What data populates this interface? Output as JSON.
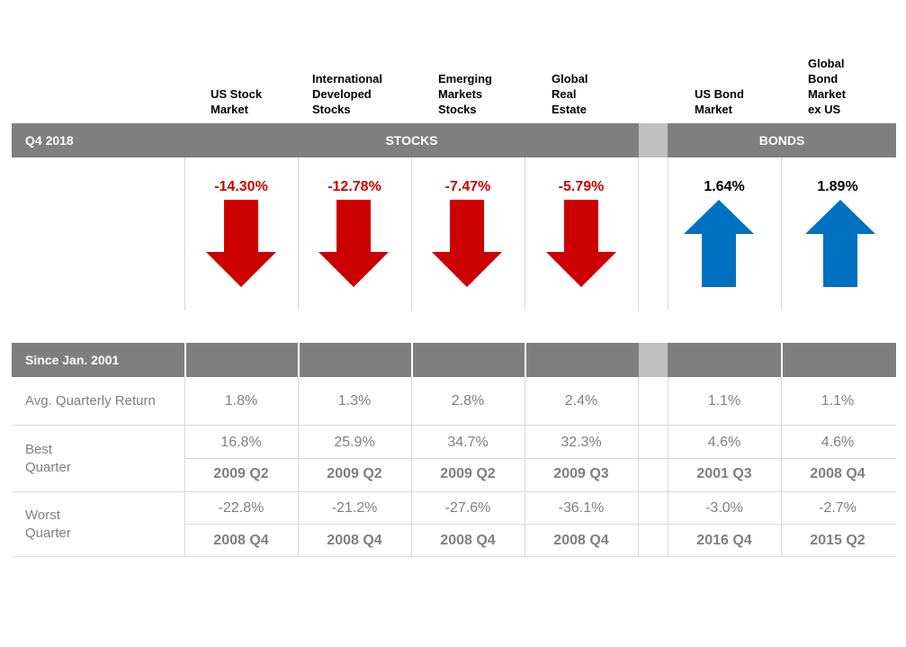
{
  "column_headers": [
    [
      "US Stock",
      "Market"
    ],
    [
      "International",
      "Developed",
      "Stocks"
    ],
    [
      "Emerging",
      "Markets",
      "Stocks"
    ],
    [
      "Global",
      "Real",
      "Estate"
    ],
    [
      "US Bond",
      "Market"
    ],
    [
      "Global",
      "Bond",
      "Market",
      "ex US"
    ]
  ],
  "top_table": {
    "period_label": "Q4 2018",
    "stocks_label": "STOCKS",
    "bonds_label": "BONDS"
  },
  "colors": {
    "negative": "#cc0000",
    "positive": "#0070c0",
    "header_bg": "#7f7f7f",
    "gap_bg": "#bfbfbf",
    "body_text": "#7f7f7f"
  },
  "chart_data": {
    "type": "table",
    "series": [
      {
        "name": "US Stock Market",
        "value_label": "-14.30%",
        "value": -14.3,
        "direction": "down"
      },
      {
        "name": "International Developed Stocks",
        "value_label": "-12.78%",
        "value": -12.78,
        "direction": "down"
      },
      {
        "name": "Emerging Markets Stocks",
        "value_label": "-7.47%",
        "value": -7.47,
        "direction": "down"
      },
      {
        "name": "Global Real Estate",
        "value_label": "-5.79%",
        "value": -5.79,
        "direction": "down"
      },
      {
        "name": "US Bond Market",
        "value_label": "1.64%",
        "value": 1.64,
        "direction": "up"
      },
      {
        "name": "Global Bond Market ex US",
        "value_label": "1.89%",
        "value": 1.89,
        "direction": "up"
      }
    ]
  },
  "bottom_table": {
    "period_label": "Since Jan. 2001",
    "avg_label": "Avg. Quarterly Return",
    "best_label": [
      "Best",
      "Quarter"
    ],
    "worst_label": [
      "Worst",
      "Quarter"
    ],
    "avg": [
      "1.8%",
      "1.3%",
      "2.8%",
      "2.4%",
      "1.1%",
      "1.1%"
    ],
    "best_value": [
      "16.8%",
      "25.9%",
      "34.7%",
      "32.3%",
      "4.6%",
      "4.6%"
    ],
    "best_quarter": [
      "2009 Q2",
      "2009 Q2",
      "2009 Q2",
      "2009 Q3",
      "2001 Q3",
      "2008 Q4"
    ],
    "worst_value": [
      "-22.8%",
      "-21.2%",
      "-27.6%",
      "-36.1%",
      "-3.0%",
      "-2.7%"
    ],
    "worst_quarter": [
      "2008 Q4",
      "2008 Q4",
      "2008 Q4",
      "2008 Q4",
      "2016 Q4",
      "2015 Q2"
    ]
  }
}
